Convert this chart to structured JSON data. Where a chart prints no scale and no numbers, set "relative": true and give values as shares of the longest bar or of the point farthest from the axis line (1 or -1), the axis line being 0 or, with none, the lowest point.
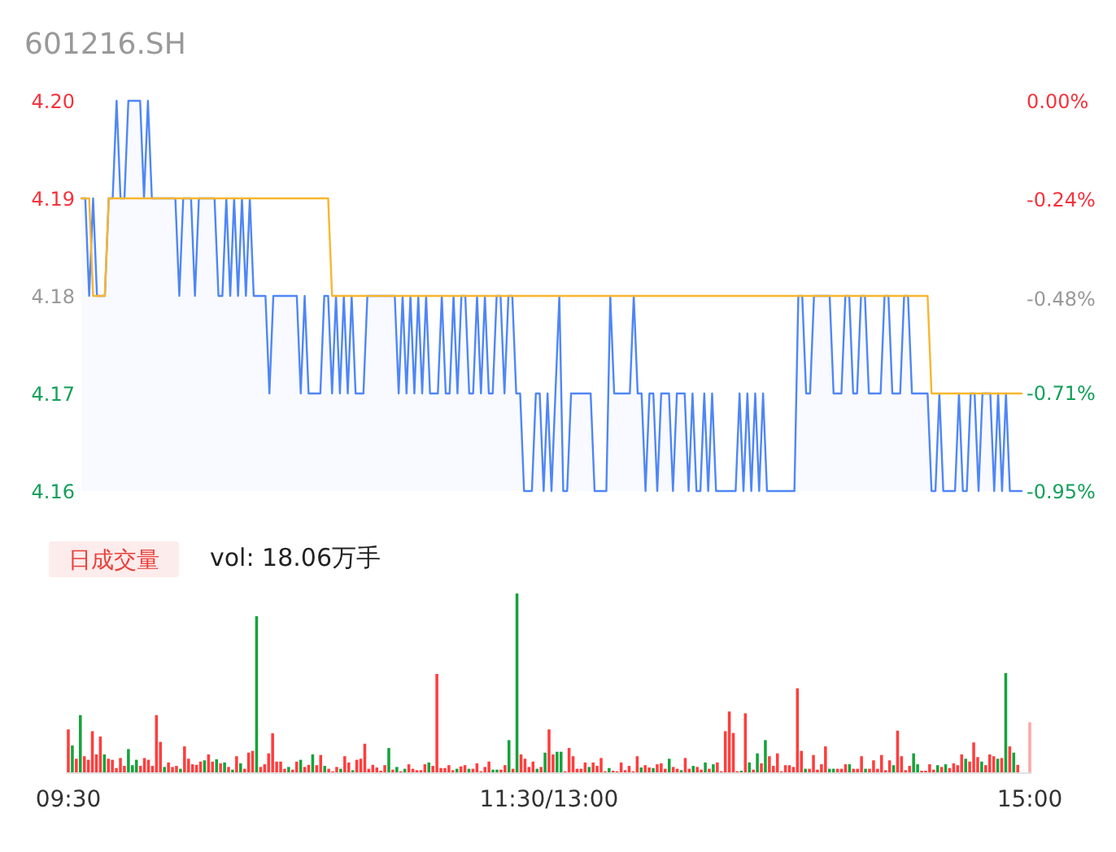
{
  "chart_data": [
    {
      "type": "line",
      "title": "601216.SH",
      "tick_labels": "y",
      "categories": [
        null,
        null,
        null,
        null,
        null,
        null,
        null,
        null,
        null,
        null,
        null,
        null,
        null,
        null,
        null,
        null,
        null,
        null,
        null,
        null,
        null,
        null,
        null,
        null,
        null,
        null,
        null,
        null,
        null,
        null,
        null,
        null,
        null,
        null,
        null,
        null,
        null,
        null,
        null,
        null,
        null,
        null,
        null,
        null,
        null,
        null,
        null,
        null,
        null,
        null,
        null,
        null,
        null,
        null,
        null,
        null,
        null,
        null,
        null,
        null,
        null,
        null,
        null,
        null,
        null,
        null,
        null,
        null,
        null,
        null,
        null,
        null,
        null,
        null,
        null,
        null,
        null,
        null,
        null,
        null,
        null,
        null,
        null,
        null,
        null,
        null,
        null,
        null,
        null,
        null,
        null,
        null,
        null,
        null,
        null,
        null,
        null,
        null,
        null,
        null,
        null,
        null,
        null,
        null,
        null,
        null,
        null,
        null,
        null,
        null,
        null,
        null,
        null,
        null,
        null,
        null,
        null,
        null,
        null,
        null,
        null,
        null,
        null,
        null,
        null,
        null,
        null,
        null,
        null,
        null,
        null,
        null,
        null,
        null,
        null,
        null,
        null,
        null,
        null,
        null,
        null,
        null,
        null,
        null,
        null,
        null,
        null,
        null,
        null,
        null,
        null,
        null,
        null,
        null,
        null,
        null,
        null,
        null,
        null,
        null,
        null,
        null,
        null,
        null,
        null,
        null,
        null,
        null,
        null,
        null,
        null,
        null,
        null,
        null,
        null,
        null,
        null,
        null,
        null,
        null,
        null,
        null,
        null,
        null,
        null,
        null,
        null,
        null,
        null,
        null,
        null,
        null,
        null,
        null,
        null,
        null,
        null,
        null,
        null,
        null,
        null,
        null,
        null,
        null,
        null,
        null,
        null,
        null,
        null,
        null,
        null,
        null,
        null,
        null,
        null,
        null,
        null,
        null,
        null,
        null,
        null,
        null,
        null,
        null,
        null,
        null,
        null,
        null,
        null,
        null,
        null,
        null,
        null,
        null,
        null,
        null,
        null,
        null,
        null,
        null,
        null
      ],
      "series": [
        {
          "type": "area",
          "color": "#4f86f7",
          "values": [
            4.19,
            4.19,
            4.18,
            4.19,
            4.18,
            4.18,
            4.18,
            4.19,
            4.19,
            4.2,
            4.19,
            4.19,
            4.2,
            4.2,
            4.2,
            4.2,
            4.19,
            4.2,
            4.19,
            4.19,
            4.19,
            4.19,
            4.19,
            4.19,
            4.19,
            4.18,
            4.19,
            4.19,
            4.19,
            4.18,
            4.19,
            4.19,
            4.19,
            4.19,
            4.19,
            4.18,
            4.18,
            4.19,
            4.18,
            4.19,
            4.18,
            4.19,
            4.18,
            4.19,
            4.18,
            4.18,
            4.18,
            4.18,
            4.17,
            4.18,
            4.18,
            4.18,
            4.18,
            4.18,
            4.18,
            4.18,
            4.17,
            4.18,
            4.17,
            4.17,
            4.17,
            4.17,
            4.18,
            4.18,
            4.17,
            4.18,
            4.17,
            4.18,
            4.17,
            4.18,
            4.17,
            4.17,
            4.17,
            4.18,
            4.18,
            4.18,
            4.18,
            4.18,
            4.18,
            4.18,
            4.18,
            4.17,
            4.18,
            4.17,
            4.18,
            4.17,
            4.18,
            4.17,
            4.18,
            4.17,
            4.17,
            4.17,
            4.18,
            4.17,
            4.17,
            4.18,
            4.17,
            4.18,
            4.18,
            4.17,
            4.17,
            4.18,
            4.17,
            4.18,
            4.17,
            4.17,
            4.18,
            4.18,
            4.17,
            4.18,
            4.18,
            4.17,
            4.17,
            4.16,
            4.16,
            4.16,
            4.17,
            4.17,
            4.16,
            4.17,
            4.16,
            4.17,
            4.18,
            4.16,
            4.16,
            4.17,
            4.17,
            4.17,
            4.17,
            4.17,
            4.17,
            4.16,
            4.16,
            4.16,
            4.16,
            4.18,
            4.17,
            4.17,
            4.17,
            4.17,
            4.17,
            4.18,
            4.17,
            4.17,
            4.16,
            4.17,
            4.17,
            4.16,
            4.17,
            4.17,
            4.17,
            4.16,
            4.17,
            4.17,
            4.17,
            4.16,
            4.17,
            4.16,
            4.16,
            4.17,
            4.16,
            4.17,
            4.16,
            4.16,
            4.16,
            4.16,
            4.16,
            4.16,
            4.17,
            4.16,
            4.17,
            4.16,
            4.17,
            4.16,
            4.17,
            4.16,
            4.16,
            4.16,
            4.16,
            4.16,
            4.16,
            4.16,
            4.16,
            4.18,
            4.18,
            4.17,
            4.17,
            4.18,
            4.18,
            4.18,
            4.18,
            4.18,
            4.17,
            4.17,
            4.17,
            4.18,
            4.18,
            4.17,
            4.17,
            4.18,
            4.18,
            4.17,
            4.17,
            4.17,
            4.17,
            4.18,
            4.18,
            4.17,
            4.17,
            4.17,
            4.18,
            4.18,
            4.17,
            4.17,
            4.17,
            4.17,
            4.17,
            4.16,
            4.16,
            4.17,
            4.16,
            4.16,
            4.16,
            4.16,
            4.17,
            4.16,
            4.16,
            4.17,
            4.17,
            4.16,
            4.17,
            4.17,
            4.17,
            4.16,
            4.17,
            4.16,
            4.17,
            4.16,
            4.16,
            4.16,
            4.16
          ]
        },
        {
          "color": "#f8b62d",
          "values": [
            4.19,
            4.19,
            4.19,
            4.18,
            4.18,
            4.18,
            4.18,
            4.19,
            4.19,
            4.19,
            4.19,
            4.19,
            4.19,
            4.19,
            4.19,
            4.19,
            4.19,
            4.19,
            4.19,
            4.19,
            4.19,
            4.19,
            4.19,
            4.19,
            4.19,
            4.19,
            4.19,
            4.19,
            4.19,
            4.19,
            4.19,
            4.19,
            4.19,
            4.19,
            4.19,
            4.19,
            4.19,
            4.19,
            4.19,
            4.19,
            4.19,
            4.19,
            4.19,
            4.19,
            4.19,
            4.19,
            4.19,
            4.19,
            4.19,
            4.19,
            4.19,
            4.19,
            4.19,
            4.19,
            4.19,
            4.19,
            4.19,
            4.19,
            4.19,
            4.19,
            4.19,
            4.19,
            4.19,
            4.19,
            4.18,
            4.18,
            4.18,
            4.18,
            4.18,
            4.18,
            4.18,
            4.18,
            4.18,
            4.18,
            4.18,
            4.18,
            4.18,
            4.18,
            4.18,
            4.18,
            4.18,
            4.18,
            4.18,
            4.18,
            4.18,
            4.18,
            4.18,
            4.18,
            4.18,
            4.18,
            4.18,
            4.18,
            4.18,
            4.18,
            4.18,
            4.18,
            4.18,
            4.18,
            4.18,
            4.18,
            4.18,
            4.18,
            4.18,
            4.18,
            4.18,
            4.18,
            4.18,
            4.18,
            4.18,
            4.18,
            4.18,
            4.18,
            4.18,
            4.18,
            4.18,
            4.18,
            4.18,
            4.18,
            4.18,
            4.18,
            4.18,
            4.18,
            4.18,
            4.18,
            4.18,
            4.18,
            4.18,
            4.18,
            4.18,
            4.18,
            4.18,
            4.18,
            4.18,
            4.18,
            4.18,
            4.18,
            4.18,
            4.18,
            4.18,
            4.18,
            4.18,
            4.18,
            4.18,
            4.18,
            4.18,
            4.18,
            4.18,
            4.18,
            4.18,
            4.18,
            4.18,
            4.18,
            4.18,
            4.18,
            4.18,
            4.18,
            4.18,
            4.18,
            4.18,
            4.18,
            4.18,
            4.18,
            4.18,
            4.18,
            4.18,
            4.18,
            4.18,
            4.18,
            4.18,
            4.18,
            4.18,
            4.18,
            4.18,
            4.18,
            4.18,
            4.18,
            4.18,
            4.18,
            4.18,
            4.18,
            4.18,
            4.18,
            4.18,
            4.18,
            4.18,
            4.18,
            4.18,
            4.18,
            4.18,
            4.18,
            4.18,
            4.18,
            4.18,
            4.18,
            4.18,
            4.18,
            4.18,
            4.18,
            4.18,
            4.18,
            4.18,
            4.18,
            4.18,
            4.18,
            4.18,
            4.18,
            4.18,
            4.18,
            4.18,
            4.18,
            4.18,
            4.18,
            4.18,
            4.18,
            4.18,
            4.18,
            4.18,
            4.17,
            4.17,
            4.17,
            4.17,
            4.17,
            4.17,
            4.17,
            4.17,
            4.17,
            4.17,
            4.17,
            4.17,
            4.17,
            4.17,
            4.17,
            4.17,
            4.17,
            4.17,
            4.17,
            4.17,
            4.17,
            4.17,
            4.17,
            4.17
          ]
        }
      ],
      "ylim": [
        4.16,
        4.2
      ],
      "yticks": [
        4.16,
        4.17,
        4.18,
        4.19,
        {
          "value": 4.2,
          "label": "4.20"
        }
      ],
      "y2lim": [
        -0.95,
        0
      ],
      "y2ticks": [
        {
          "value": -0.95,
          "label": "-0.95%"
        },
        {
          "value": -0.71,
          "label": "-0.71%"
        },
        {
          "value": -0.48,
          "label": "-0.48%"
        },
        {
          "value": -0.24,
          "label": "-0.24%"
        },
        {
          "value": 0,
          "label": "0.00%"
        }
      ]
    },
    {
      "type": "bar",
      "title": "日成交量",
      "subtitle": "vol: 18.06万手",
      "relative": true,
      "tick_labels": "x",
      "categories": [
        "09:30",
        null,
        null,
        null,
        null,
        null,
        null,
        null,
        null,
        null,
        null,
        null,
        null,
        null,
        null,
        null,
        null,
        null,
        null,
        null,
        null,
        null,
        null,
        null,
        null,
        null,
        null,
        null,
        null,
        null,
        null,
        null,
        null,
        null,
        null,
        null,
        null,
        null,
        null,
        null,
        null,
        null,
        null,
        null,
        null,
        null,
        null,
        null,
        null,
        null,
        null,
        null,
        null,
        null,
        null,
        null,
        null,
        null,
        null,
        null,
        null,
        null,
        null,
        null,
        null,
        null,
        null,
        null,
        null,
        null,
        null,
        null,
        null,
        null,
        null,
        null,
        null,
        null,
        null,
        null,
        null,
        null,
        null,
        null,
        null,
        null,
        null,
        null,
        null,
        null,
        null,
        null,
        null,
        null,
        null,
        null,
        null,
        null,
        null,
        null,
        null,
        null,
        null,
        null,
        null,
        null,
        null,
        null,
        null,
        null,
        null,
        null,
        null,
        null,
        null,
        null,
        null,
        null,
        null,
        null,
        "11:30/13:00",
        null,
        null,
        null,
        null,
        null,
        null,
        null,
        null,
        null,
        null,
        null,
        null,
        null,
        null,
        null,
        null,
        null,
        null,
        null,
        null,
        null,
        null,
        null,
        null,
        null,
        null,
        null,
        null,
        null,
        null,
        null,
        null,
        null,
        null,
        null,
        null,
        null,
        null,
        null,
        null,
        null,
        null,
        null,
        null,
        null,
        null,
        null,
        null,
        null,
        null,
        null,
        null,
        null,
        null,
        null,
        null,
        null,
        null,
        null,
        null,
        null,
        null,
        null,
        null,
        null,
        null,
        null,
        null,
        null,
        null,
        null,
        null,
        null,
        null,
        null,
        null,
        null,
        null,
        null,
        null,
        null,
        null,
        null,
        null,
        null,
        null,
        null,
        null,
        null,
        null,
        null,
        null,
        null,
        null,
        null,
        null,
        null,
        null,
        null,
        null,
        null,
        null,
        null,
        null,
        null,
        null,
        null,
        null,
        null,
        null,
        null,
        null,
        null,
        null,
        null,
        null,
        null,
        null,
        null,
        "15:00"
      ],
      "values": [
        0.24,
        0.15,
        0.076,
        0.32,
        0.09,
        0.07,
        0.23,
        0.1,
        0.2,
        0.1,
        0.076,
        0.07,
        0.024,
        0.08,
        0.036,
        0.13,
        0.04,
        0.07,
        0.036,
        0.08,
        0.07,
        0.036,
        0.32,
        0.17,
        0.03,
        0.055,
        0.03,
        0.036,
        0.02,
        0.145,
        0.076,
        0.045,
        0.042,
        0.06,
        0.067,
        0.1,
        0.06,
        0.073,
        0.05,
        0.055,
        0.03,
        0.015,
        0.09,
        0.05,
        0.02,
        0.11,
        0.12,
        0.873,
        0.03,
        0.045,
        0.106,
        0.218,
        0.06,
        0.06,
        0.02,
        0.03,
        0.015,
        0.06,
        0.07,
        0.03,
        0.042,
        0.1,
        0.04,
        0.097,
        0.036,
        0.02,
        0.006,
        0.03,
        0.02,
        0.09,
        0.055,
        0.012,
        0.07,
        0.076,
        0.16,
        0.02,
        0.042,
        0.027,
        0.009,
        0.04,
        0.136,
        0.015,
        0.03,
        0.006,
        0.02,
        0.045,
        0.02,
        0.012,
        0.012,
        0.045,
        0.055,
        0.036,
        0.55,
        0.024,
        0.024,
        0.04,
        0.012,
        0.02,
        0.033,
        0.04,
        0.02,
        0.02,
        0.05,
        0.006,
        0.03,
        0.06,
        0.015,
        0.015,
        0.015,
        0.04,
        0.18,
        0.02,
        1,
        0.1,
        0.076,
        0.03,
        0.06,
        0.02,
        0.03,
        0.11,
        0.24,
        0.1,
        0.115,
        0.115,
        0.006,
        0.136,
        0.09,
        0.02,
        0.02,
        0.055,
        0.03,
        0.055,
        0.036,
        0.08,
        0.006,
        0.024,
        0.009,
        0.006,
        0.055,
        0.012,
        0.036,
        0.006,
        0.09,
        0.027,
        0.04,
        0.027,
        0.024,
        0.045,
        0.05,
        0.02,
        0.076,
        0.03,
        0.02,
        0.012,
        0.08,
        0.02,
        0.036,
        0.03,
        0.015,
        0.055,
        0.02,
        0.045,
        0.055,
        0.006,
        0.23,
        0.34,
        0.22,
        0.006,
        0.009,
        0.33,
        0.055,
        0.015,
        0.106,
        0.05,
        0.18,
        0.09,
        0.036,
        0.106,
        0.006,
        0.04,
        0.04,
        0.03,
        0.47,
        0.12,
        0.02,
        0.02,
        0.097,
        0.015,
        0.045,
        0.145,
        0.02,
        0.02,
        0.02,
        0.02,
        0.045,
        0.045,
        0.02,
        0.02,
        0.09,
        0.02,
        0.02,
        0.067,
        0.02,
        0.097,
        0.012,
        0.067,
        0.04,
        0.233,
        0.09,
        0.012,
        0.036,
        0.106,
        0.045,
        0.009,
        0.009,
        0.045,
        0.015,
        0.04,
        0.03,
        0.045,
        0.024,
        0.05,
        0.04,
        0.1,
        0.076,
        0.06,
        0.167,
        0.085,
        0.06,
        0.04,
        0.1,
        0.09,
        0.076,
        0.08,
        0.555,
        0.145,
        0.11,
        0.042,
        null,
        null,
        0.28
      ],
      "colors": [
        "#ff3d3d",
        "#15a33b",
        "#ff3d3d",
        "#15a33b",
        "#ff3d3d",
        "#ff3d3d",
        "#ff3d3d",
        "#ff3d3d",
        "#ff3d3d",
        "#15a33b",
        "#ff3d3d",
        "#ff3d3d",
        "#ff3d3d",
        "#ff3d3d",
        "#ff3d3d",
        "#15a33b",
        "#15a33b",
        "#15a33b",
        "#ff3d3d",
        "#ff3d3d",
        "#ff3d3d",
        "#ff3d3d",
        "#ff3d3d",
        "#ff3d3d",
        "#15a33b",
        "#ff3d3d",
        "#ff3d3d",
        "#ff3d3d",
        "#15a33b",
        "#ff3d3d",
        "#ff3d3d",
        "#ff3d3d",
        "#ff3d3d",
        "#ff3d3d",
        "#15a33b",
        "#ff3d3d",
        "#ff3d3d",
        "#15a33b",
        "#ff3d3d",
        "#15a33b",
        "#ff3d3d",
        "#15a33b",
        "#ff3d3d",
        "#15a33b",
        "#ff3d3d",
        "#ff3d3d",
        "#ff3d3d",
        "#15a33b",
        "#ff3d3d",
        "#ff3d3d",
        "#ff3d3d",
        "#ff3d3d",
        "#ff3d3d",
        "#ff3d3d",
        "#ff3d3d",
        "#15a33b",
        "#ff3d3d",
        "#ff3d3d",
        "#15a33b",
        "#ff3d3d",
        "#ff3d3d",
        "#15a33b",
        "#ff3d3d",
        "#ff3d3d",
        "#15a33b",
        "#ff3d3d",
        "#ff3d3d",
        "#ff3d3d",
        "#15a33b",
        "#ff3d3d",
        "#ff3d3d",
        "#15a33b",
        "#ff3d3d",
        "#ff3d3d",
        "#ff3d3d",
        "#ff3d3d",
        "#ff3d3d",
        "#ff3d3d",
        "#ff3d3d",
        "#ff3d3d",
        "#15a33b",
        "#ff3d3d",
        "#15a33b",
        "#ff3d3d",
        "#15a33b",
        "#ff3d3d",
        "#ff3d3d",
        "#ff3d3d",
        "#ff3d3d",
        "#ff3d3d",
        "#15a33b",
        "#ff3d3d",
        "#ff3d3d",
        "#ff3d3d",
        "#ff3d3d",
        "#ff3d3d",
        "#ff3d3d",
        "#15a33b",
        "#ff3d3d",
        "#ff3d3d",
        "#15a33b",
        "#ff3d3d",
        "#ff3d3d",
        "#ff3d3d",
        "#ff3d3d",
        "#ff3d3d",
        "#15a33b",
        "#15a33b",
        "#ff3d3d",
        "#ff3d3d",
        "#15a33b",
        "#ff3d3d",
        "#15a33b",
        "#ff3d3d",
        "#ff3d3d",
        "#ff3d3d",
        "#ff3d3d",
        "#15a33b",
        "#ff3d3d",
        "#15a33b",
        "#ff3d3d",
        "#ff3d3d",
        "#15a33b",
        "#15a33b",
        "#ff3d3d",
        "#ff3d3d",
        "#ff3d3d",
        "#ff3d3d",
        "#ff3d3d",
        "#ff3d3d",
        "#15a33b",
        "#ff3d3d",
        "#ff3d3d",
        "#ff3d3d",
        "#ff3d3d",
        "#15a33b",
        "#ff3d3d",
        "#ff3d3d",
        "#ff3d3d",
        "#ff3d3d",
        "#ff3d3d",
        "#ff3d3d",
        "#ff3d3d",
        "#15a33b",
        "#ff3d3d",
        "#ff3d3d",
        "#15a33b",
        "#ff3d3d",
        "#ff3d3d",
        "#ff3d3d",
        "#15a33b",
        "#ff3d3d",
        "#ff3d3d",
        "#15a33b",
        "#ff3d3d",
        "#ff3d3d",
        "#15a33b",
        "#ff3d3d",
        "#ff3d3d",
        "#15a33b",
        "#ff3d3d",
        "#15a33b",
        "#ff3d3d",
        "#ff3d3d",
        "#ff3d3d",
        "#ff3d3d",
        "#ff3d3d",
        "#ff3d3d",
        "#15a33b",
        "#ff3d3d",
        "#15a33b",
        "#ff3d3d",
        "#15a33b",
        "#ff3d3d",
        "#15a33b",
        "#ff3d3d",
        "#ff3d3d",
        "#ff3d3d",
        "#ff3d3d",
        "#ff3d3d",
        "#ff3d3d",
        "#ff3d3d",
        "#ff3d3d",
        "#ff3d3d",
        "#15a33b",
        "#ff3d3d",
        "#ff3d3d",
        "#ff3d3d",
        "#ff3d3d",
        "#ff3d3d",
        "#15a33b",
        "#15a33b",
        "#ff3d3d",
        "#ff3d3d",
        "#ff3d3d",
        "#15a33b",
        "#ff3d3d",
        "#ff3d3d",
        "#ff3d3d",
        "#15a33b",
        "#ff3d3d",
        "#ff3d3d",
        "#ff3d3d",
        "#ff3d3d",
        "#ff3d3d",
        "#ff3d3d",
        "#15a33b",
        "#ff3d3d",
        "#ff3d3d",
        "#ff3d3d",
        "#ff3d3d",
        "#15a33b",
        "#15a33b",
        "#ff3d3d",
        "#ff3d3d",
        "#ff3d3d",
        "#ff3d3d",
        "#15a33b",
        "#ff3d3d",
        "#15a33b",
        "#ff3d3d",
        "#ff3d3d",
        "#ff3d3d",
        "#ff3d3d",
        "#15a33b",
        "#ff3d3d",
        "#ff3d3d",
        "#ff3d3d",
        "#15a33b",
        "#ff3d3d",
        "#ff3d3d",
        "#ff3d3d",
        "#15a33b",
        "#ff3d3d",
        "#15a33b",
        "#ff3d3d",
        "#15a33b",
        "#ff3d3d",
        null,
        null,
        "#ffa6a6"
      ]
    }
  ]
}
